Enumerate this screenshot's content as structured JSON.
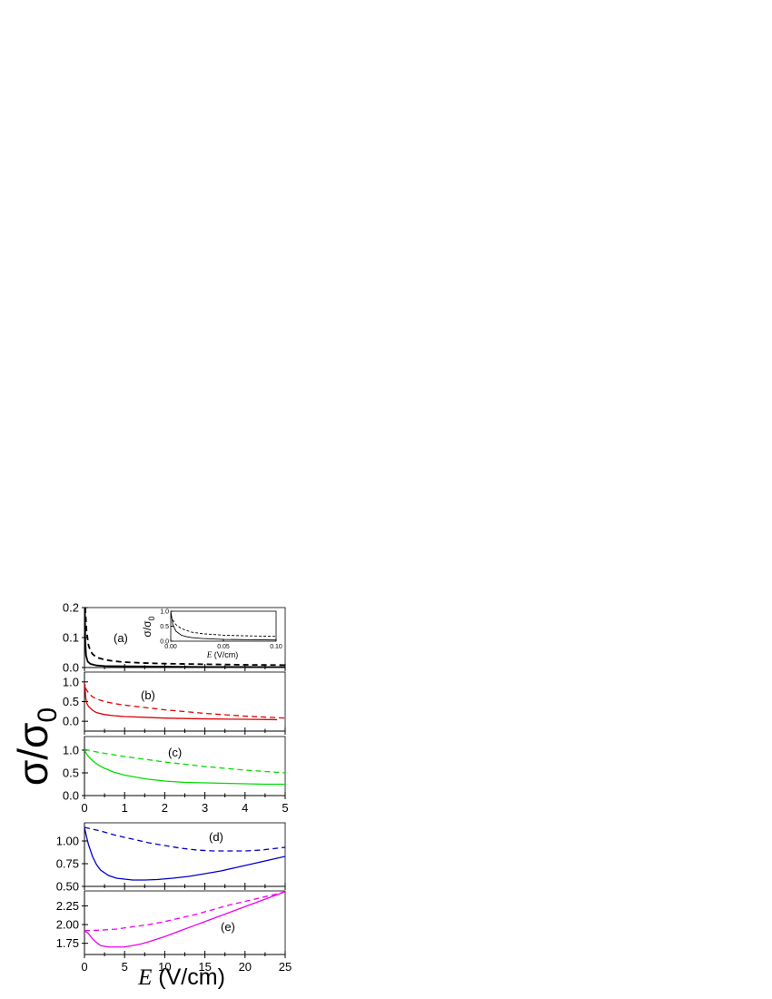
{
  "figure": {
    "ylabel_main": "σ/σ",
    "ylabel_sub": "0",
    "xlabel_italic": "E",
    "xlabel_rest": " (V/cm)"
  },
  "chart_data": [
    {
      "id": "a",
      "type": "line",
      "panel_label": "(a)",
      "color": "#000000",
      "xlim": [
        0,
        5
      ],
      "ylim": [
        0,
        0.2
      ],
      "yticks": [
        "0.0",
        "0.1",
        "0.2"
      ],
      "ytick_values": [
        0,
        0.1,
        0.2
      ],
      "xticks": [],
      "series": [
        {
          "style": "dashed",
          "x": [
            0.02,
            0.05,
            0.1,
            0.15,
            0.2,
            0.3,
            0.5,
            0.75,
            1,
            1.5,
            2,
            3,
            4,
            5
          ],
          "y": [
            0.2,
            0.125,
            0.075,
            0.055,
            0.045,
            0.034,
            0.026,
            0.021,
            0.018,
            0.015,
            0.013,
            0.011,
            0.009,
            0.008
          ]
        },
        {
          "style": "solid",
          "x": [
            0.01,
            0.02,
            0.04,
            0.08,
            0.15,
            0.3,
            0.5,
            1,
            2,
            3,
            4,
            5
          ],
          "y": [
            0.2,
            0.09,
            0.04,
            0.02,
            0.012,
            0.007,
            0.005,
            0.004,
            0.003,
            0.002,
            0.002,
            0.001
          ]
        }
      ],
      "inset": {
        "ylabel_main": "σ/σ",
        "ylabel_sub": "0",
        "xlabel_italic": "E",
        "xlabel_rest": " (V/cm)",
        "xlim": [
          0,
          0.1
        ],
        "ylim": [
          0,
          1.0
        ],
        "xticks": [
          "0.00",
          "0.05",
          "0.10"
        ],
        "xtick_values": [
          0,
          0.05,
          0.1
        ],
        "yticks": [
          "0.0",
          "0.5",
          "1.0"
        ],
        "ytick_values": [
          0,
          0.5,
          1.0
        ],
        "series": [
          {
            "style": "dashed",
            "x": [
              0,
              0.002,
              0.005,
              0.01,
              0.02,
              0.03,
              0.05,
              0.07,
              0.1
            ],
            "y": [
              0.85,
              0.7,
              0.55,
              0.42,
              0.3,
              0.25,
              0.2,
              0.18,
              0.16
            ]
          },
          {
            "style": "solid",
            "x": [
              0,
              0.002,
              0.005,
              0.01,
              0.015,
              0.02,
              0.03,
              0.05,
              0.07,
              0.1
            ],
            "y": [
              1.0,
              0.55,
              0.33,
              0.2,
              0.15,
              0.12,
              0.09,
              0.06,
              0.05,
              0.04
            ]
          }
        ]
      }
    },
    {
      "id": "b",
      "type": "line",
      "panel_label": "(b)",
      "color": "#e00000",
      "xlim": [
        0,
        5
      ],
      "ylim": [
        -0.25,
        1.25
      ],
      "yticks": [
        "0.0",
        "0.5",
        "1.0"
      ],
      "ytick_values": [
        0,
        0.5,
        1.0
      ],
      "xticks": [],
      "series": [
        {
          "style": "dashed",
          "x": [
            0.02,
            0.1,
            0.2,
            0.35,
            0.5,
            0.75,
            1,
            1.5,
            2,
            3,
            4,
            5
          ],
          "y": [
            0.85,
            0.72,
            0.62,
            0.55,
            0.5,
            0.45,
            0.41,
            0.35,
            0.29,
            0.2,
            0.13,
            0.08
          ]
        },
        {
          "style": "solid",
          "x": [
            0.01,
            0.03,
            0.06,
            0.1,
            0.2,
            0.3,
            0.5,
            0.75,
            1,
            1.5,
            2,
            3,
            4,
            4.8
          ],
          "y": [
            0.95,
            0.6,
            0.45,
            0.38,
            0.28,
            0.22,
            0.17,
            0.14,
            0.12,
            0.1,
            0.08,
            0.06,
            0.05,
            0.04
          ]
        }
      ]
    },
    {
      "id": "c",
      "type": "line",
      "panel_label": "(c)",
      "color": "#00dd00",
      "xlim": [
        0,
        5
      ],
      "ylim": [
        0,
        1.3
      ],
      "yticks": [
        "0.0",
        "0.5",
        "1.0"
      ],
      "ytick_values": [
        0,
        0.5,
        1.0
      ],
      "xticks": [
        "0",
        "1",
        "2",
        "3",
        "4",
        "5"
      ],
      "xtick_values": [
        0,
        1,
        2,
        3,
        4,
        5
      ],
      "series": [
        {
          "style": "dashed",
          "x": [
            0,
            0.25,
            0.5,
            1,
            1.5,
            2,
            2.5,
            3,
            3.5,
            4,
            4.5,
            5
          ],
          "y": [
            1.02,
            0.97,
            0.93,
            0.86,
            0.8,
            0.74,
            0.69,
            0.64,
            0.6,
            0.56,
            0.53,
            0.5
          ]
        },
        {
          "style": "solid",
          "x": [
            0,
            0.05,
            0.1,
            0.2,
            0.35,
            0.5,
            0.75,
            1,
            1.5,
            2,
            2.5,
            3,
            3.5,
            4,
            4.5,
            5
          ],
          "y": [
            1.0,
            0.92,
            0.86,
            0.77,
            0.67,
            0.6,
            0.51,
            0.45,
            0.37,
            0.32,
            0.29,
            0.28,
            0.27,
            0.26,
            0.25,
            0.25
          ]
        }
      ]
    },
    {
      "id": "d",
      "type": "line",
      "panel_label": "(d)",
      "color": "#0000cc",
      "xlim": [
        0,
        25
      ],
      "ylim": [
        0.5,
        1.2
      ],
      "yticks": [
        "0.50",
        "0.75",
        "1.00"
      ],
      "ytick_values": [
        0.5,
        0.75,
        1.0
      ],
      "xticks": [],
      "series": [
        {
          "style": "dashed",
          "x": [
            0,
            2,
            4,
            6,
            8,
            10,
            12,
            14,
            16,
            18,
            20,
            22,
            24,
            25
          ],
          "y": [
            1.15,
            1.11,
            1.06,
            1.02,
            0.98,
            0.95,
            0.92,
            0.9,
            0.89,
            0.89,
            0.89,
            0.9,
            0.92,
            0.93
          ]
        },
        {
          "style": "solid",
          "x": [
            0,
            0.25,
            0.5,
            1,
            1.5,
            2,
            3,
            4,
            5,
            6,
            7.5,
            9,
            11,
            13,
            15,
            17,
            19,
            21,
            23,
            25
          ],
          "y": [
            1.15,
            1.05,
            0.96,
            0.83,
            0.74,
            0.68,
            0.62,
            0.59,
            0.58,
            0.57,
            0.57,
            0.575,
            0.59,
            0.61,
            0.64,
            0.67,
            0.71,
            0.75,
            0.79,
            0.83
          ]
        }
      ]
    },
    {
      "id": "e",
      "type": "line",
      "panel_label": "(e)",
      "color": "#ee00ee",
      "xlim": [
        0,
        25
      ],
      "ylim": [
        1.6,
        2.45
      ],
      "yticks": [
        "1.75",
        "2.00",
        "2.25"
      ],
      "ytick_values": [
        1.75,
        2.0,
        2.25
      ],
      "xticks": [
        "0",
        "5",
        "10",
        "15",
        "20",
        "25"
      ],
      "xtick_values": [
        0,
        5,
        10,
        15,
        20,
        25
      ],
      "series": [
        {
          "style": "dashed",
          "x": [
            0,
            2,
            4,
            6,
            8,
            10,
            12,
            14,
            16,
            18,
            20,
            22,
            24,
            25
          ],
          "y": [
            1.92,
            1.925,
            1.94,
            1.97,
            2.0,
            2.04,
            2.09,
            2.14,
            2.2,
            2.26,
            2.31,
            2.36,
            2.41,
            2.44
          ]
        },
        {
          "style": "solid",
          "x": [
            0,
            0.5,
            1,
            1.5,
            2,
            3,
            4,
            5,
            6,
            7,
            8,
            10,
            12,
            14,
            16,
            18,
            20,
            22,
            24,
            25
          ],
          "y": [
            1.92,
            1.88,
            1.81,
            1.76,
            1.72,
            1.7,
            1.7,
            1.7,
            1.72,
            1.74,
            1.77,
            1.84,
            1.92,
            2.0,
            2.08,
            2.16,
            2.24,
            2.32,
            2.4,
            2.44
          ]
        }
      ]
    }
  ]
}
